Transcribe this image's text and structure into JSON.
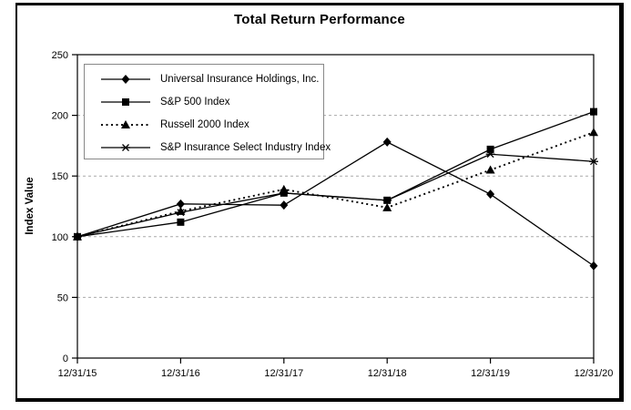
{
  "colors": {
    "line": "#000000",
    "grid": "#a9a9a9",
    "legend_border": "#888888",
    "background": "#ffffff"
  },
  "chart_data": {
    "type": "line",
    "title": "Total Return Performance",
    "xlabel": "",
    "ylabel": "Index Value",
    "x": [
      "12/31/15",
      "12/31/16",
      "12/31/17",
      "12/31/18",
      "12/31/19",
      "12/31/20"
    ],
    "ylim": [
      0,
      250
    ],
    "yticks": [
      0,
      50,
      100,
      150,
      200,
      250
    ],
    "grid": true,
    "legend_position": "top-left-inside",
    "series": [
      {
        "name": "Universal Insurance Holdings, Inc.",
        "marker": "diamond",
        "line_style": "solid",
        "values": [
          100,
          127,
          126,
          178,
          135,
          76
        ]
      },
      {
        "name": "S&P 500 Index",
        "marker": "square",
        "line_style": "solid",
        "values": [
          100,
          112,
          136,
          130,
          172,
          203
        ]
      },
      {
        "name": "Russell 2000 Index",
        "marker": "triangle",
        "line_style": "dotted",
        "values": [
          100,
          121,
          139,
          124,
          155,
          186
        ]
      },
      {
        "name": "S&P Insurance Select Industry Index",
        "marker": "asterisk",
        "line_style": "solid",
        "values": [
          100,
          120,
          136,
          130,
          168,
          162
        ]
      }
    ]
  }
}
